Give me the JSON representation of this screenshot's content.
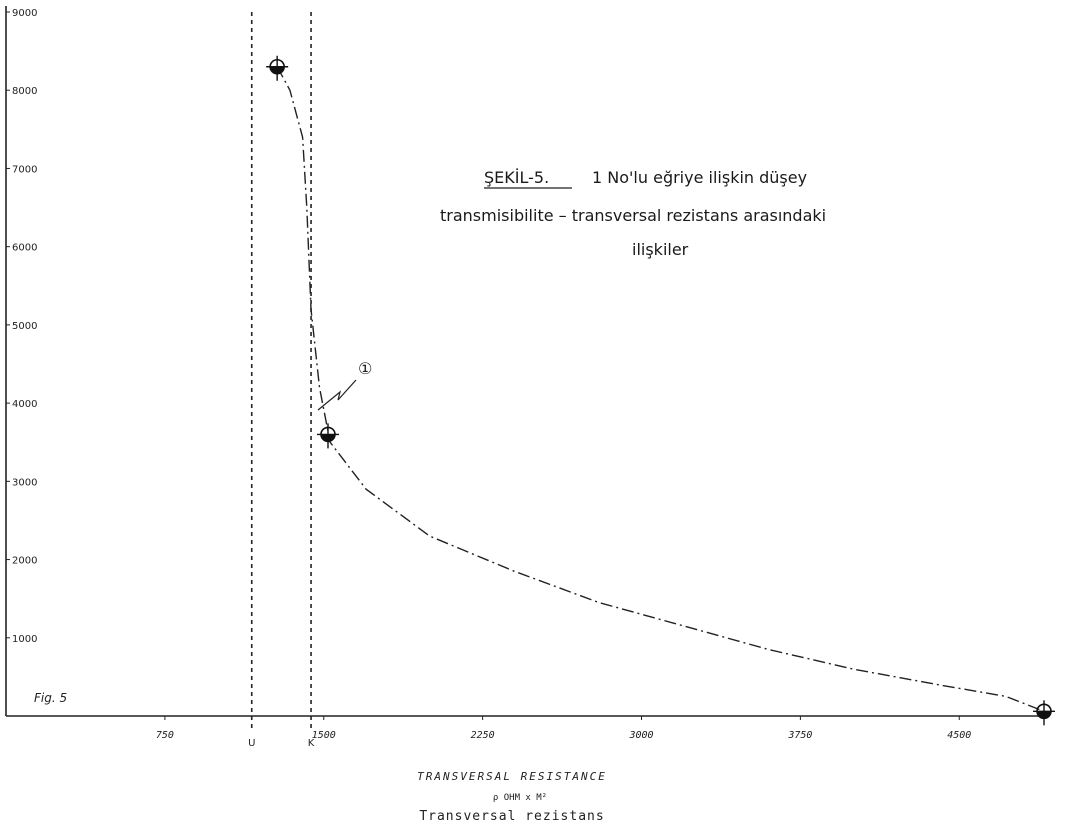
{
  "chart_data": {
    "type": "line",
    "title_lines": [
      "ŞEKİL-5.",
      "1 No'lu eğriye ilişkin düşey",
      "transmisibilite – transversal rezistans arasındaki",
      "ilişkiler"
    ],
    "fig_label": "Fig. 5",
    "xlabel_lines": [
      "TRANSVERSAL RESISTANCE",
      "ρ OHM x M²",
      "Transversal rezistans"
    ],
    "ylabel": "",
    "x_ticks": [
      750,
      1500,
      2250,
      3000,
      3750,
      4500
    ],
    "x_tick_labels": [
      "750",
      "1500",
      "2250",
      "3000",
      "3750",
      "4500"
    ],
    "y_ticks": [
      1000,
      2000,
      3000,
      4000,
      5000,
      6000,
      7000,
      8000,
      9000
    ],
    "y_tick_labels": [
      "1000",
      "2000",
      "3000",
      "4000",
      "5000",
      "6000",
      "7000",
      "8000",
      "9000"
    ],
    "xlim": [
      0,
      4900
    ],
    "ylim": [
      0,
      9000
    ],
    "vertical_lines": [
      {
        "x": 1160,
        "label": "U"
      },
      {
        "x": 1440,
        "label": "K"
      }
    ],
    "curve_annotation": "①",
    "series": [
      {
        "name": "",
        "curve": [
          [
            1280,
            8300
          ],
          [
            1340,
            8000
          ],
          [
            1400,
            7400
          ],
          [
            1420,
            6500
          ],
          [
            1440,
            5200
          ],
          [
            1480,
            4200
          ],
          [
            1530,
            3500
          ],
          [
            1700,
            2900
          ],
          [
            2000,
            2300
          ],
          [
            2400,
            1850
          ],
          [
            2800,
            1450
          ],
          [
            3200,
            1150
          ],
          [
            3600,
            850
          ],
          [
            4000,
            600
          ],
          [
            4400,
            400
          ],
          [
            4720,
            250
          ],
          [
            4900,
            60
          ]
        ],
        "markers": [
          [
            1280,
            8300
          ],
          [
            1520,
            3600
          ],
          [
            4900,
            60
          ]
        ]
      }
    ]
  }
}
